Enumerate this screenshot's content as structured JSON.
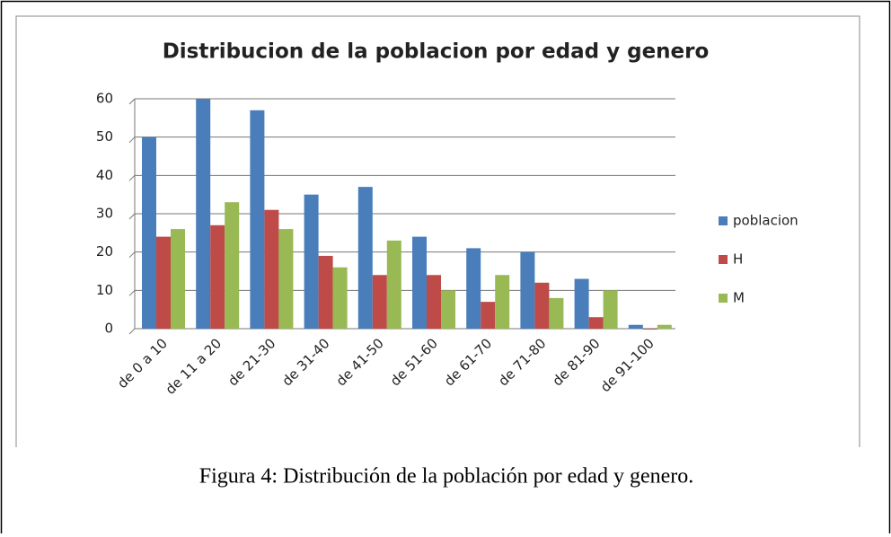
{
  "caption": "Figura 4: Distribución de la población por edad y genero.",
  "chart_data": {
    "type": "bar",
    "title": "Distribucion de la poblacion por edad y genero",
    "categories": [
      "de 0 a 10",
      "de 11 a 20",
      "de 21-30",
      "de 31-40",
      "de 41-50",
      "de 51-60",
      "de 61-70",
      "de 71-80",
      "de 81-90",
      "de 91-100"
    ],
    "series": [
      {
        "name": "poblacion",
        "color": "#4a7ebb",
        "values": [
          50,
          60,
          57,
          35,
          37,
          24,
          21,
          20,
          13,
          1
        ]
      },
      {
        "name": "H",
        "color": "#be4b48",
        "values": [
          24,
          27,
          31,
          19,
          14,
          14,
          7,
          12,
          3,
          0
        ]
      },
      {
        "name": "M",
        "color": "#98b954",
        "values": [
          26,
          33,
          26,
          16,
          23,
          10,
          14,
          8,
          10,
          1
        ]
      }
    ],
    "ylim": [
      0,
      60
    ],
    "yticks": [
      0,
      10,
      20,
      30,
      40,
      50,
      60
    ],
    "grid": true,
    "legend": "right"
  }
}
